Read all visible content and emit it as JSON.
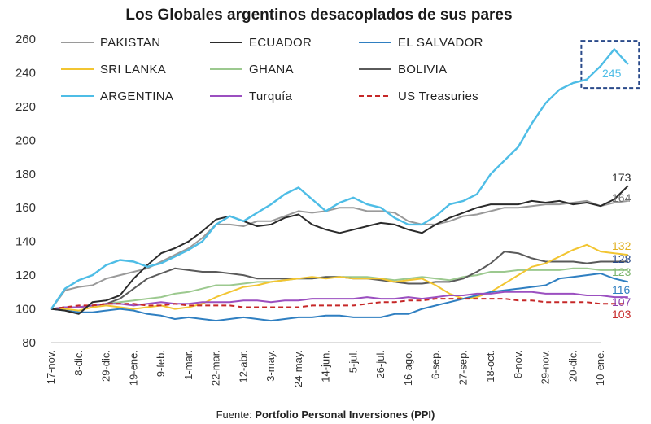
{
  "chart_data": {
    "type": "line",
    "title": "Los Globales argentinos desacoplados de sus pares",
    "source_prefix": "Fuente: ",
    "source_bold": "Portfolio Personal Inversiones (PPI)",
    "xlabel": "",
    "ylabel": "",
    "ylim": [
      80,
      260
    ],
    "yticks": [
      "80",
      "100",
      "120",
      "140",
      "160",
      "180",
      "200",
      "220",
      "240",
      "260"
    ],
    "grid": false,
    "legend_position": "top",
    "x_tick_labels": [
      "17-nov.",
      "8-dic.",
      "29-dic.",
      "19-ene.",
      "9-feb.",
      "1-mar.",
      "22-mar.",
      "12-abr.",
      "3-may.",
      "24-may.",
      "14-jun.",
      "5-jul.",
      "26-jul.",
      "16-ago.",
      "6-sep.",
      "27-sep.",
      "18-oct.",
      "8-nov.",
      "29-nov.",
      "20-dic.",
      "10-ene."
    ],
    "x": [
      0,
      0.5,
      1,
      1.5,
      2,
      2.5,
      3,
      3.5,
      4,
      4.5,
      5,
      5.5,
      6,
      6.5,
      7,
      7.5,
      8,
      8.5,
      9,
      9.5,
      10,
      10.5,
      11,
      11.5,
      12,
      12.5,
      13,
      13.5,
      14,
      14.5,
      15,
      15.5,
      16,
      16.5,
      17,
      17.5,
      18,
      18.5,
      19,
      19.5,
      20,
      20.5,
      21
    ],
    "series": [
      {
        "name": "PAKISTAN",
        "color": "#9a9a9a",
        "dash": false,
        "end_label": "164",
        "label_color": "#6e6e6e",
        "values": [
          100,
          111,
          113,
          114,
          118,
          120,
          122,
          124,
          128,
          132,
          136,
          142,
          150,
          150,
          149,
          152,
          152,
          155,
          158,
          157,
          158,
          160,
          160,
          158,
          158,
          157,
          152,
          150,
          150,
          152,
          155,
          156,
          158,
          160,
          160,
          161,
          162,
          162,
          163,
          164,
          161,
          163,
          164
        ]
      },
      {
        "name": "ECUADOR",
        "color": "#2b2b2b",
        "dash": false,
        "end_label": "173",
        "label_color": "#2b2b2b",
        "values": [
          100,
          99,
          97,
          104,
          105,
          108,
          118,
          126,
          133,
          136,
          140,
          146,
          153,
          155,
          152,
          149,
          150,
          154,
          156,
          150,
          147,
          145,
          147,
          149,
          151,
          150,
          147,
          145,
          150,
          154,
          157,
          160,
          162,
          162,
          162,
          164,
          163,
          164,
          162,
          163,
          161,
          165,
          173
        ]
      },
      {
        "name": "EL SALVADOR",
        "color": "#2f7fc1",
        "dash": false,
        "end_label": "116",
        "label_color": "#2f7fc1",
        "values": [
          100,
          99,
          98,
          98,
          99,
          100,
          99,
          97,
          96,
          94,
          95,
          94,
          93,
          94,
          95,
          94,
          93,
          94,
          95,
          95,
          96,
          96,
          95,
          95,
          95,
          97,
          97,
          100,
          102,
          104,
          106,
          108,
          110,
          111,
          112,
          113,
          114,
          118,
          119,
          120,
          121,
          118,
          116
        ]
      },
      {
        "name": "SRI LANKA",
        "color": "#f2c531",
        "dash": false,
        "end_label": "132",
        "label_color": "#e0b020",
        "values": [
          100,
          100,
          99,
          101,
          102,
          101,
          100,
          101,
          102,
          100,
          101,
          103,
          107,
          110,
          113,
          114,
          116,
          117,
          118,
          119,
          118,
          119,
          118,
          118,
          118,
          116,
          117,
          118,
          114,
          109,
          106,
          107,
          110,
          115,
          120,
          125,
          127,
          131,
          135,
          138,
          134,
          133,
          132
        ]
      },
      {
        "name": "GHANA",
        "color": "#9cc98f",
        "dash": false,
        "end_label": "123",
        "label_color": "#7db56e",
        "values": [
          100,
          101,
          101,
          102,
          103,
          104,
          105,
          106,
          107,
          109,
          110,
          112,
          114,
          114,
          115,
          116,
          116,
          117,
          118,
          118,
          119,
          119,
          119,
          119,
          118,
          117,
          118,
          119,
          118,
          117,
          119,
          120,
          122,
          122,
          123,
          123,
          123,
          123,
          124,
          124,
          123,
          123,
          123
        ]
      },
      {
        "name": "BOLIVIA",
        "color": "#5a5a5a",
        "dash": false,
        "end_label": "128",
        "label_color": "#2a4a8a",
        "values": [
          100,
          101,
          101,
          102,
          103,
          106,
          112,
          118,
          121,
          124,
          123,
          122,
          122,
          121,
          120,
          118,
          118,
          118,
          118,
          118,
          119,
          119,
          118,
          118,
          117,
          116,
          115,
          115,
          116,
          116,
          118,
          122,
          127,
          134,
          133,
          130,
          128,
          128,
          128,
          127,
          128,
          128,
          128
        ]
      },
      {
        "name": "ARGENTINA",
        "color": "#4ebde6",
        "dash": false,
        "end_label": "245",
        "label_color": "#4ebde6",
        "values": [
          100,
          112,
          117,
          120,
          126,
          129,
          128,
          125,
          127,
          131,
          135,
          140,
          150,
          155,
          152,
          157,
          162,
          168,
          172,
          165,
          158,
          163,
          166,
          162,
          160,
          154,
          150,
          150,
          155,
          162,
          164,
          168,
          180,
          188,
          196,
          210,
          222,
          230,
          234,
          236,
          244,
          254,
          245
        ]
      },
      {
        "name": "Turquía",
        "color": "#9b4fc0",
        "dash": false,
        "end_label": "107",
        "label_color": "#8a3fb0",
        "values": [
          100,
          101,
          101,
          102,
          103,
          103,
          102,
          103,
          104,
          103,
          103,
          104,
          104,
          104,
          105,
          105,
          104,
          105,
          105,
          106,
          106,
          106,
          106,
          107,
          106,
          106,
          107,
          106,
          107,
          108,
          108,
          109,
          109,
          110,
          110,
          110,
          109,
          109,
          109,
          108,
          108,
          107,
          107
        ]
      },
      {
        "name": "US Treasuries",
        "color": "#c62828",
        "dash": true,
        "end_label": "103",
        "label_color": "#c62828",
        "values": [
          100,
          101,
          102,
          102,
          103,
          103,
          103,
          102,
          102,
          103,
          102,
          102,
          102,
          102,
          101,
          101,
          101,
          101,
          101,
          102,
          102,
          102,
          102,
          103,
          104,
          104,
          105,
          105,
          106,
          106,
          106,
          106,
          106,
          106,
          105,
          105,
          104,
          104,
          104,
          104,
          103,
          103,
          103
        ]
      }
    ],
    "highlight": {
      "x_from": 19.3,
      "x_to": 21.4,
      "y_from": 231,
      "y_to": 259,
      "color": "#2a4a8a"
    }
  }
}
